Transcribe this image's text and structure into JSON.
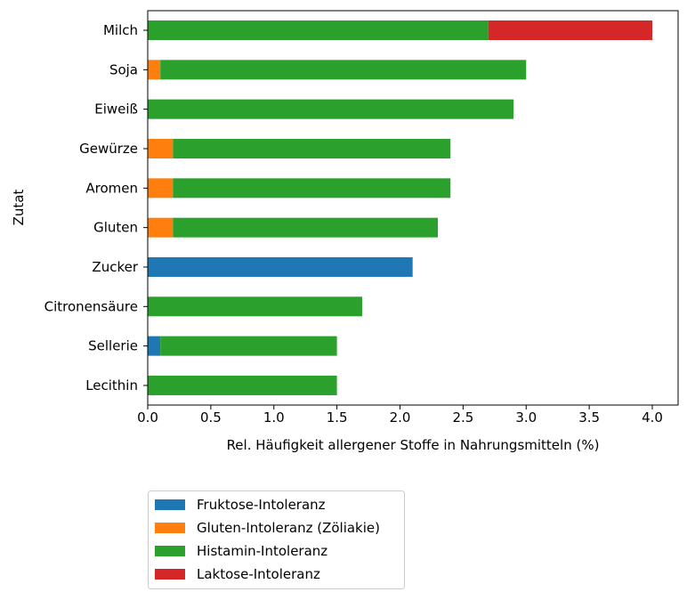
{
  "chart_data": {
    "type": "bar",
    "orientation": "horizontal",
    "stacked": true,
    "title": "",
    "xlabel": "Rel. Häufigkeit allergener Stoffe in Nahrungsmitteln (%)",
    "ylabel": "Zutat",
    "xlim": [
      0,
      4.2
    ],
    "xticks": [
      "0.0",
      "0.5",
      "1.0",
      "1.5",
      "2.0",
      "2.5",
      "3.0",
      "3.5",
      "4.0"
    ],
    "grid": false,
    "legend_position": "bottom-left, below plot",
    "categories": [
      "Milch",
      "Soja",
      "Eiweiß",
      "Gewürze",
      "Aromen",
      "Gluten",
      "Zucker",
      "Citronensäure",
      "Sellerie",
      "Lecithin"
    ],
    "series": [
      {
        "name": "Fruktose-Intoleranz",
        "color": "#1f77b4",
        "values": [
          0,
          0,
          0,
          0,
          0,
          0,
          2.1,
          0,
          0.1,
          0
        ]
      },
      {
        "name": "Gluten-Intoleranz (Zöliakie)",
        "color": "#ff7f0e",
        "values": [
          0,
          0.1,
          0,
          0.2,
          0.2,
          0.2,
          0,
          0,
          0,
          0
        ]
      },
      {
        "name": "Histamin-Intoleranz",
        "color": "#2ca02c",
        "values": [
          2.7,
          2.9,
          2.9,
          2.2,
          2.2,
          2.1,
          0,
          1.7,
          1.4,
          1.5
        ]
      },
      {
        "name": "Laktose-Intoleranz",
        "color": "#d62728",
        "values": [
          1.3,
          0,
          0,
          0,
          0,
          0,
          0,
          0,
          0,
          0
        ]
      }
    ]
  }
}
